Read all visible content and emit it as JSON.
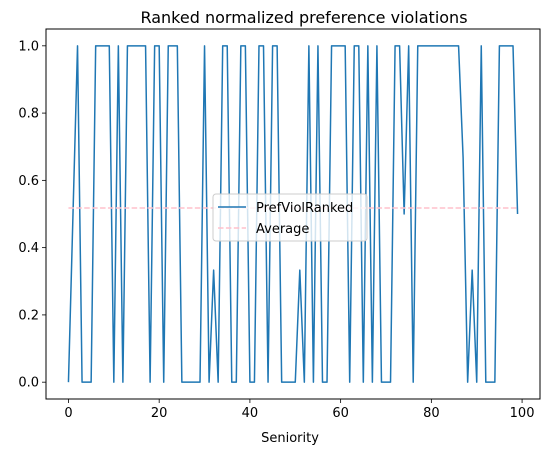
{
  "chart_data": {
    "type": "line",
    "title": "Ranked normalized preference violations",
    "xlabel": "Seniority",
    "ylabel": "",
    "xlim": [
      -4.95,
      103.95
    ],
    "ylim": [
      -0.05,
      1.05
    ],
    "x_ticks": [
      0,
      20,
      40,
      60,
      80,
      100
    ],
    "y_ticks": [
      0.0,
      0.2,
      0.4,
      0.6,
      0.8,
      1.0
    ],
    "x_tick_labels": [
      "0",
      "20",
      "40",
      "60",
      "80",
      "100"
    ],
    "y_tick_labels": [
      "0.0",
      "0.2",
      "0.4",
      "0.6",
      "0.8",
      "1.0"
    ],
    "grid": false,
    "legend_position": "center",
    "series": [
      {
        "name": "PrefViolRanked",
        "color": "#1f77b4",
        "style": "solid",
        "x": [
          0,
          1,
          2,
          3,
          4,
          5,
          6,
          7,
          8,
          9,
          10,
          11,
          12,
          13,
          14,
          15,
          16,
          17,
          18,
          19,
          20,
          21,
          22,
          23,
          24,
          25,
          26,
          27,
          28,
          29,
          30,
          31,
          32,
          33,
          34,
          35,
          36,
          37,
          38,
          39,
          40,
          41,
          42,
          43,
          44,
          45,
          46,
          47,
          48,
          49,
          50,
          51,
          52,
          53,
          54,
          55,
          56,
          57,
          58,
          59,
          60,
          61,
          62,
          63,
          64,
          65,
          66,
          67,
          68,
          69,
          70,
          71,
          72,
          73,
          74,
          75,
          76,
          77,
          78,
          79,
          80,
          81,
          82,
          83,
          84,
          85,
          86,
          87,
          88,
          89,
          90,
          91,
          92,
          93,
          94,
          95,
          96,
          97,
          98,
          99
        ],
        "y": [
          0,
          0.5,
          1,
          0,
          0,
          0,
          1,
          1,
          1,
          1,
          0,
          1,
          0,
          1,
          1,
          1,
          1,
          1,
          0,
          1,
          1,
          0,
          1,
          1,
          1,
          0,
          0,
          0,
          0,
          0,
          1,
          0,
          0.333,
          0,
          1,
          1,
          0,
          0,
          1,
          1,
          0,
          0,
          1,
          1,
          0,
          1,
          1,
          0,
          0,
          0,
          0,
          0.333,
          0,
          1,
          0,
          1,
          0,
          0,
          1,
          1,
          1,
          1,
          0,
          1,
          1,
          0,
          1,
          0,
          1,
          0,
          0,
          0,
          1,
          1,
          0.5,
          1,
          0,
          1,
          1,
          1,
          1,
          1,
          1,
          1,
          1,
          1,
          1,
          0.667,
          0,
          0.333,
          0,
          1,
          0,
          0,
          0,
          1,
          1,
          1,
          1,
          0.5
        ]
      },
      {
        "name": "Average",
        "color": "#ffc0cb",
        "style": "dashed",
        "x": [
          0,
          99
        ],
        "y": [
          0.518,
          0.518
        ]
      }
    ]
  }
}
